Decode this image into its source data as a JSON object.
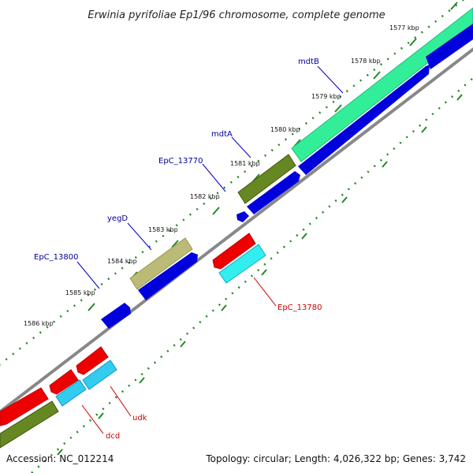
{
  "title": "Erwinia pyrifoliae Ep1/96 chromosome, complete genome",
  "footer": {
    "accession": "Accession: NC_012214",
    "topology": "Topology: circular; Length: 4,026,322 bp; Genes: 3,742"
  },
  "ticks": [
    {
      "label": "1577 kbp"
    },
    {
      "label": "1578 kbp"
    },
    {
      "label": "1579 kbp"
    },
    {
      "label": "1580 kbp"
    },
    {
      "label": "1581 kbp"
    },
    {
      "label": "1582 kbp"
    },
    {
      "label": "1583 kbp"
    },
    {
      "label": "1584 kbp"
    },
    {
      "label": "1585 kbp"
    },
    {
      "label": "1586 kbp"
    }
  ],
  "genes": {
    "mdtB": "mdtB",
    "mdtA": "mdtA",
    "EpC_13770": "EpC_13770",
    "yegD": "yegD",
    "EpC_13800": "EpC_13800",
    "EpC_13780": "EpC_13780",
    "udk": "udk",
    "dcd": "dcd"
  },
  "colors": {
    "forward_cds": "#0000dd",
    "reverse_cds": "#ee0000",
    "reverse_rna": "#33ddee",
    "mdt_genes": "#33ee99",
    "olive_gene": "#668822",
    "khaki_gene": "#bbbb77",
    "backbone": "#888888",
    "tick": "#228822",
    "forward_label": "#000099",
    "reverse_label": "#cc0000"
  }
}
